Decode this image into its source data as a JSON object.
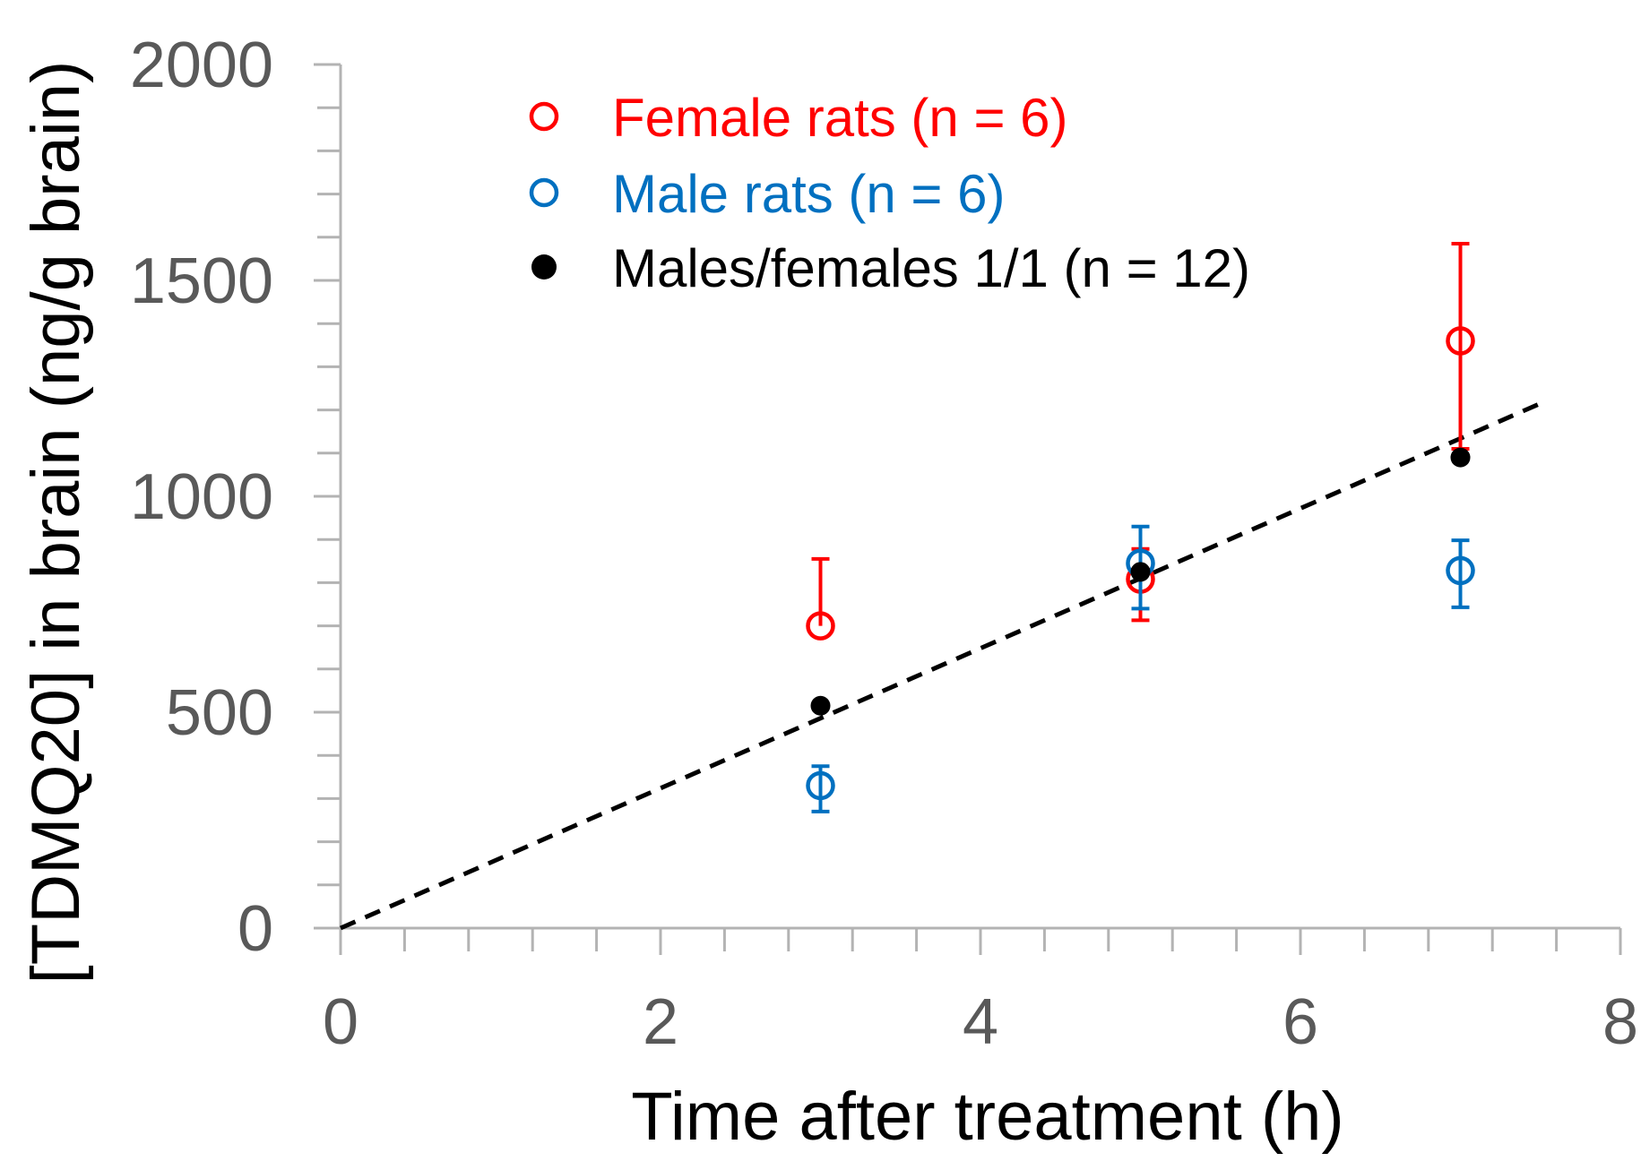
{
  "chart_data": {
    "type": "scatter",
    "title": "",
    "xlabel": "Time after treatment (h)",
    "ylabel": "[TDMQ20] in brain (ng/g brain)",
    "xlim": [
      0,
      8
    ],
    "ylim": [
      0,
      2000
    ],
    "x_ticks": [
      "0",
      "2",
      "4",
      "6",
      "8"
    ],
    "y_ticks": [
      "0",
      "500",
      "1000",
      "1500",
      "2000"
    ],
    "x_tick_values": [
      0,
      2,
      4,
      6,
      8
    ],
    "y_tick_values": [
      0,
      500,
      1000,
      1500,
      2000
    ],
    "x_minor_step": 0.4,
    "y_minor_step": 100,
    "legend_position": "top-center",
    "series": [
      {
        "name": "Female rats (n = 6)",
        "marker": "open-circle",
        "color": "#ff0000",
        "x": [
          3,
          5,
          7
        ],
        "y": [
          700,
          808,
          1360
        ],
        "err_low": [
          0,
          95,
          250
        ],
        "err_high": [
          155,
          70,
          225
        ]
      },
      {
        "name": "Male rats (n = 6)",
        "marker": "open-circle",
        "color": "#0070c0",
        "x": [
          3,
          5,
          7
        ],
        "y": [
          330,
          845,
          828
        ],
        "err_low": [
          60,
          105,
          85
        ],
        "err_high": [
          45,
          85,
          70
        ]
      },
      {
        "name": "Males/females 1/1 (n = 12)",
        "marker": "filled-circle",
        "color": "#000000",
        "x": [
          3,
          5,
          7
        ],
        "y": [
          515,
          825,
          1090
        ],
        "err_low": [
          0,
          0,
          0
        ],
        "err_high": [
          0,
          0,
          0
        ]
      }
    ],
    "trendline": {
      "style": "dashed",
      "color": "#000000",
      "x": [
        0,
        7.5
      ],
      "y": [
        0,
        1215
      ]
    }
  }
}
